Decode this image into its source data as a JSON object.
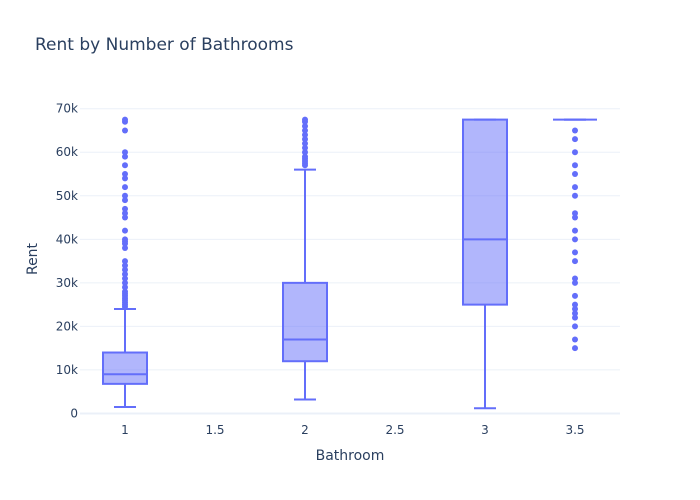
{
  "chart_data": {
    "type": "box",
    "title": "Rent by Number of Bathrooms",
    "xlabel": "Bathroom",
    "ylabel": "Rent",
    "x_ticks": [
      "1",
      "1.5",
      "2",
      "2.5",
      "3",
      "3.5"
    ],
    "y_ticks": [
      {
        "value": 0,
        "label": "0"
      },
      {
        "value": 10000,
        "label": "10k"
      },
      {
        "value": 20000,
        "label": "20k"
      },
      {
        "value": 30000,
        "label": "30k"
      },
      {
        "value": 40000,
        "label": "40k"
      },
      {
        "value": 50000,
        "label": "50k"
      },
      {
        "value": 60000,
        "label": "60k"
      },
      {
        "value": 70000,
        "label": "70k"
      }
    ],
    "xlim": [
      0.75,
      3.75
    ],
    "ylim": [
      -1500,
      72000
    ],
    "grid": true,
    "color": "#636efa",
    "fill_color": "#636efa",
    "boxes": [
      {
        "x": 1,
        "min": 1500,
        "q1": 6800,
        "median": 9000,
        "q3": 14000,
        "max": 24000,
        "outliers": [
          24500,
          25000,
          25500,
          26000,
          26500,
          27000,
          27500,
          28000,
          29000,
          30000,
          31000,
          32000,
          33000,
          34000,
          35000,
          38000,
          39000,
          39500,
          40000,
          42000,
          45000,
          46000,
          47000,
          49000,
          50000,
          52000,
          54000,
          55000,
          57000,
          59000,
          60000,
          65000,
          67000,
          67500
        ]
      },
      {
        "x": 2,
        "min": 3200,
        "q1": 12000,
        "median": 17000,
        "q3": 30000,
        "max": 56000,
        "outliers": [
          57000,
          57500,
          58000,
          58500,
          59000,
          60000,
          61000,
          62000,
          63000,
          64000,
          65000,
          66000,
          67000,
          67500
        ]
      },
      {
        "x": 3,
        "min": 1200,
        "q1": 25000,
        "median": 40000,
        "q3": 67500,
        "max": 67500,
        "outliers": []
      },
      {
        "x": 3.5,
        "min": 67500,
        "q1": 67500,
        "median": 67500,
        "q3": 67500,
        "max": 67500,
        "outliers": [
          15000,
          17000,
          20000,
          22000,
          23000,
          24000,
          25000,
          27000,
          30000,
          31000,
          35000,
          37000,
          40000,
          42000,
          45000,
          46000,
          50000,
          52000,
          55000,
          57000,
          60000,
          63000,
          65000
        ]
      }
    ]
  }
}
